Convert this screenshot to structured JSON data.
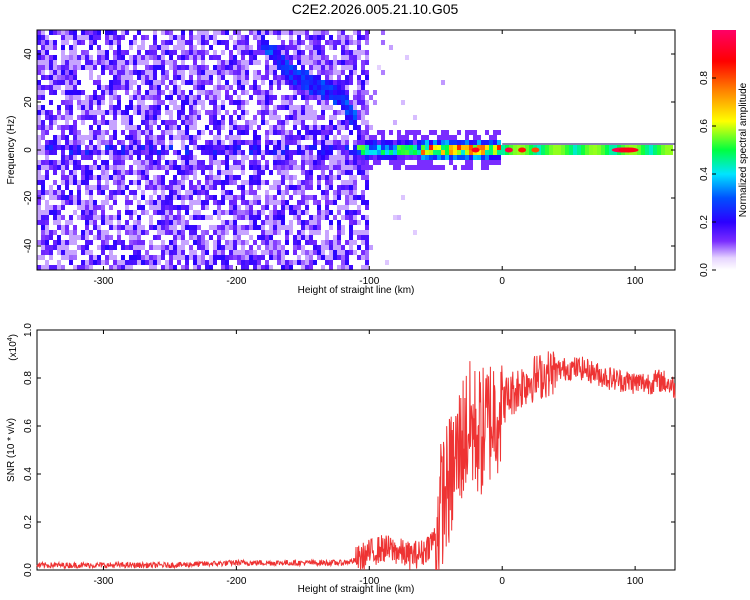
{
  "figure_title": "C2E2.2026.005.21.10.G05",
  "chart_data": [
    {
      "type": "heatmap",
      "title": "C2E2.2026.005.21.10.G05",
      "xlabel": "Height of straight line (km)",
      "ylabel": "Frequency (Hz)",
      "xlim": [
        -350,
        130
      ],
      "ylim": [
        -50,
        50
      ],
      "x_ticks": [
        -300,
        -200,
        -100,
        0,
        100
      ],
      "y_ticks": [
        -40,
        -20,
        0,
        20,
        40
      ],
      "colorbar": {
        "label": "Normalized spectral amplitude",
        "range": [
          0,
          1
        ],
        "ticks": [
          "0.0",
          "0.2",
          "0.4",
          "0.6",
          "0.8"
        ],
        "tick_values": [
          0.0,
          0.2,
          0.4,
          0.6,
          0.8
        ],
        "colors": [
          "#ffffff",
          "#e6d4ff",
          "#7a2dff",
          "#2b00ff",
          "#0050ff",
          "#00e5ff",
          "#00ff40",
          "#ffff00",
          "#ff8000",
          "#ff0000",
          "#ff0066"
        ],
        "color_stops": [
          0,
          0.05,
          0.12,
          0.2,
          0.3,
          0.4,
          0.5,
          0.62,
          0.75,
          0.87,
          1.0
        ]
      },
      "features": [
        {
          "name": "noise",
          "x_range": [
            -350,
            -100
          ],
          "freq_range": [
            -50,
            50
          ]
        },
        {
          "name": "upper trace",
          "x": [
            -180,
            -160,
            -140,
            -120,
            -110
          ],
          "freq": [
            45,
            32,
            27,
            22,
            12
          ]
        },
        {
          "name": "carrier",
          "x_range": [
            -110,
            130
          ],
          "freq": 0
        }
      ]
    },
    {
      "type": "line",
      "xlabel": "Height of straight line (km)",
      "ylabel": "SNR (10 * v/v)",
      "y_multiplier_label": "(x10",
      "y_multiplier_exponent": "4",
      "y_multiplier_close": ")",
      "xlim": [
        -350,
        130
      ],
      "ylim": [
        0,
        1.0
      ],
      "x_ticks": [
        -300,
        -200,
        -100,
        0,
        100
      ],
      "y_ticks": [
        0.0,
        0.2,
        0.4,
        0.6,
        0.8,
        1.0
      ],
      "y_tick_labels": [
        "0.0",
        "0.2",
        "0.4",
        "0.6",
        "0.8",
        "1.0"
      ],
      "color": "#ee3333",
      "series": [
        {
          "x": [
            -350,
            -300,
            -250,
            -200,
            -150,
            -120,
            -110,
            -100,
            -90,
            -80,
            -70,
            -60,
            -50,
            -45,
            -40,
            -35,
            -30,
            -25,
            -20,
            -15,
            -10,
            -5,
            0,
            10,
            20,
            30,
            40,
            50,
            60,
            70,
            80,
            90,
            100,
            110,
            120,
            130
          ],
          "values": [
            0.02,
            0.02,
            0.02,
            0.03,
            0.03,
            0.03,
            0.04,
            0.07,
            0.09,
            0.08,
            0.06,
            0.07,
            0.14,
            0.3,
            0.36,
            0.45,
            0.55,
            0.6,
            0.58,
            0.57,
            0.62,
            0.66,
            0.7,
            0.75,
            0.79,
            0.81,
            0.83,
            0.84,
            0.84,
            0.82,
            0.8,
            0.79,
            0.78,
            0.78,
            0.79,
            0.76
          ]
        }
      ]
    }
  ]
}
